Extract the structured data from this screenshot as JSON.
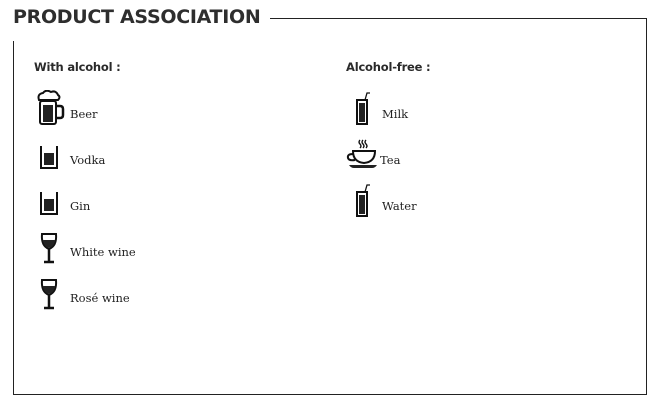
{
  "title": "PRODUCT ASSOCIATION",
  "with_alcohol": {
    "heading": "With alcohol :",
    "items": [
      {
        "label": "Beer",
        "icon": "beer-mug-icon"
      },
      {
        "label": "Vodka",
        "icon": "shot-glass-icon"
      },
      {
        "label": "Gin",
        "icon": "shot-glass-icon"
      },
      {
        "label": "White wine",
        "icon": "wine-glass-icon"
      },
      {
        "label": "Rosé wine",
        "icon": "wine-glass-icon"
      }
    ]
  },
  "alcohol_free": {
    "heading": "Alcohol-free :",
    "items": [
      {
        "label": "Milk",
        "icon": "glass-with-straw-icon"
      },
      {
        "label": "Tea",
        "icon": "tea-cup-icon"
      },
      {
        "label": "Water",
        "icon": "glass-with-straw-icon"
      }
    ]
  }
}
